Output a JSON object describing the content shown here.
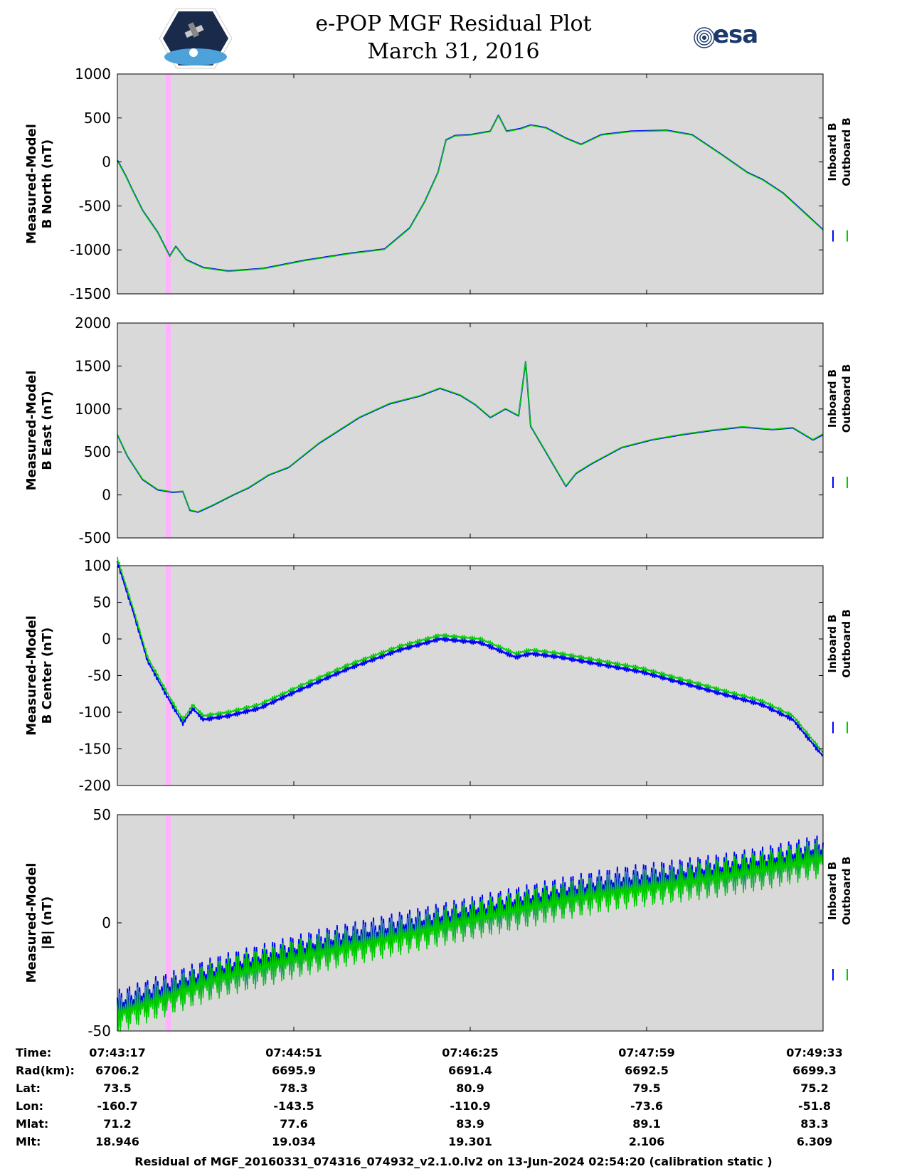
{
  "header": {
    "title": "e-POP MGF Residual Plot",
    "date": "March 31, 2016",
    "esa_logo_text": "esa",
    "mission_logo": "cassiope-mission-logo"
  },
  "chart_data": [
    {
      "type": "line",
      "ylabel": [
        "Measured-Model",
        "B North (nT)"
      ],
      "ylim": [
        -1500,
        1000
      ],
      "yticks": [
        "1000",
        "500",
        "0",
        "-500",
        "-1000",
        "-1500"
      ],
      "ytick_values": [
        1000,
        500,
        0,
        -500,
        -1000,
        -1500
      ],
      "legend": [
        "Inboard B",
        "Outboard B"
      ],
      "series": [
        {
          "name": "Inboard B",
          "color": "#0000ff",
          "values": [
            [
              0,
              20
            ],
            [
              8,
              -150
            ],
            [
              15,
              -320
            ],
            [
              25,
              -550
            ],
            [
              40,
              -800
            ],
            [
              52,
              -1070
            ],
            [
              58,
              -960
            ],
            [
              68,
              -1110
            ],
            [
              85,
              -1200
            ],
            [
              110,
              -1240
            ],
            [
              145,
              -1210
            ],
            [
              185,
              -1120
            ],
            [
              230,
              -1040
            ],
            [
              265,
              -990
            ],
            [
              290,
              -750
            ],
            [
              305,
              -450
            ],
            [
              318,
              -120
            ],
            [
              326,
              250
            ],
            [
              335,
              300
            ],
            [
              350,
              310
            ],
            [
              370,
              350
            ],
            [
              378,
              530
            ],
            [
              386,
              350
            ],
            [
              400,
              380
            ],
            [
              410,
              420
            ],
            [
              425,
              390
            ],
            [
              445,
              270
            ],
            [
              460,
              200
            ],
            [
              480,
              310
            ],
            [
              510,
              350
            ],
            [
              545,
              360
            ],
            [
              570,
              310
            ],
            [
              600,
              80
            ],
            [
              625,
              -120
            ],
            [
              640,
              -200
            ],
            [
              660,
              -350
            ],
            [
              680,
              -560
            ],
            [
              700,
              -770
            ]
          ]
        },
        {
          "name": "Outboard B",
          "color": "#00cc00",
          "values": [
            [
              0,
              15
            ],
            [
              8,
              -155
            ],
            [
              15,
              -325
            ],
            [
              25,
              -555
            ],
            [
              40,
              -805
            ],
            [
              52,
              -1075
            ],
            [
              58,
              -965
            ],
            [
              68,
              -1115
            ],
            [
              85,
              -1205
            ],
            [
              110,
              -1245
            ],
            [
              145,
              -1215
            ],
            [
              185,
              -1125
            ],
            [
              230,
              -1045
            ],
            [
              265,
              -995
            ],
            [
              290,
              -755
            ],
            [
              305,
              -455
            ],
            [
              318,
              -125
            ],
            [
              326,
              245
            ],
            [
              335,
              295
            ],
            [
              350,
              305
            ],
            [
              370,
              345
            ],
            [
              378,
              525
            ],
            [
              386,
              345
            ],
            [
              400,
              375
            ],
            [
              410,
              415
            ],
            [
              425,
              385
            ],
            [
              445,
              265
            ],
            [
              460,
              195
            ],
            [
              480,
              305
            ],
            [
              510,
              345
            ],
            [
              545,
              355
            ],
            [
              570,
              305
            ],
            [
              600,
              75
            ],
            [
              625,
              -125
            ],
            [
              640,
              -205
            ],
            [
              660,
              -355
            ],
            [
              680,
              -565
            ],
            [
              700,
              -775
            ]
          ]
        }
      ]
    },
    {
      "type": "line",
      "ylabel": [
        "Measured-Model",
        "B East (nT)"
      ],
      "ylim": [
        -500,
        2000
      ],
      "yticks": [
        "2000",
        "1500",
        "1000",
        "500",
        "0",
        "-500"
      ],
      "ytick_values": [
        2000,
        1500,
        1000,
        500,
        0,
        -500
      ],
      "legend": [
        "Inboard B",
        "Outboard B"
      ],
      "series": [
        {
          "name": "Inboard B",
          "color": "#0000ff",
          "values": [
            [
              0,
              700
            ],
            [
              10,
              450
            ],
            [
              25,
              180
            ],
            [
              40,
              60
            ],
            [
              55,
              30
            ],
            [
              65,
              40
            ],
            [
              72,
              -180
            ],
            [
              80,
              -200
            ],
            [
              95,
              -120
            ],
            [
              115,
              0
            ],
            [
              130,
              80
            ],
            [
              150,
              230
            ],
            [
              170,
              320
            ],
            [
              200,
              600
            ],
            [
              240,
              900
            ],
            [
              270,
              1060
            ],
            [
              300,
              1150
            ],
            [
              320,
              1240
            ],
            [
              340,
              1160
            ],
            [
              355,
              1050
            ],
            [
              370,
              900
            ],
            [
              385,
              1000
            ],
            [
              398,
              920
            ],
            [
              405,
              1550
            ],
            [
              410,
              800
            ],
            [
              425,
              500
            ],
            [
              445,
              100
            ],
            [
              455,
              250
            ],
            [
              470,
              360
            ],
            [
              500,
              550
            ],
            [
              530,
              640
            ],
            [
              560,
              700
            ],
            [
              590,
              750
            ],
            [
              620,
              790
            ],
            [
              650,
              760
            ],
            [
              670,
              780
            ],
            [
              690,
              640
            ],
            [
              700,
              700
            ]
          ]
        },
        {
          "name": "Outboard B",
          "color": "#00cc00",
          "values": [
            [
              0,
              705
            ],
            [
              10,
              455
            ],
            [
              25,
              185
            ],
            [
              40,
              65
            ],
            [
              55,
              35
            ],
            [
              65,
              45
            ],
            [
              72,
              -175
            ],
            [
              80,
              -195
            ],
            [
              95,
              -115
            ],
            [
              115,
              5
            ],
            [
              130,
              85
            ],
            [
              150,
              235
            ],
            [
              170,
              325
            ],
            [
              200,
              605
            ],
            [
              240,
              905
            ],
            [
              270,
              1065
            ],
            [
              300,
              1155
            ],
            [
              320,
              1245
            ],
            [
              340,
              1165
            ],
            [
              355,
              1055
            ],
            [
              370,
              905
            ],
            [
              385,
              1005
            ],
            [
              398,
              925
            ],
            [
              405,
              1555
            ],
            [
              410,
              805
            ],
            [
              425,
              505
            ],
            [
              445,
              105
            ],
            [
              455,
              255
            ],
            [
              470,
              365
            ],
            [
              500,
              555
            ],
            [
              530,
              645
            ],
            [
              560,
              705
            ],
            [
              590,
              755
            ],
            [
              620,
              795
            ],
            [
              650,
              765
            ],
            [
              670,
              785
            ],
            [
              690,
              645
            ],
            [
              700,
              710
            ]
          ]
        }
      ]
    },
    {
      "type": "line",
      "ylabel": [
        "Measured-Model",
        "B Center (nT)"
      ],
      "ylim": [
        -200,
        100
      ],
      "yticks": [
        "100",
        "50",
        "0",
        "-50",
        "-100",
        "-150",
        "-200"
      ],
      "ytick_values": [
        100,
        50,
        0,
        -50,
        -100,
        -150,
        -200
      ],
      "legend": [
        "Inboard B",
        "Outboard B"
      ],
      "series": [
        {
          "name": "Inboard B",
          "color": "#0000ff",
          "values": [
            [
              0,
              105
            ],
            [
              15,
              40
            ],
            [
              30,
              -30
            ],
            [
              50,
              -80
            ],
            [
              65,
              -115
            ],
            [
              75,
              -95
            ],
            [
              85,
              -110
            ],
            [
              110,
              -105
            ],
            [
              140,
              -95
            ],
            [
              180,
              -70
            ],
            [
              230,
              -40
            ],
            [
              280,
              -15
            ],
            [
              320,
              0
            ],
            [
              360,
              -5
            ],
            [
              395,
              -25
            ],
            [
              410,
              -20
            ],
            [
              440,
              -25
            ],
            [
              480,
              -35
            ],
            [
              520,
              -45
            ],
            [
              560,
              -60
            ],
            [
              600,
              -75
            ],
            [
              640,
              -90
            ],
            [
              670,
              -110
            ],
            [
              700,
              -160
            ]
          ]
        },
        {
          "name": "Outboard B",
          "color": "#00cc00",
          "values": [
            [
              0,
              110
            ],
            [
              15,
              45
            ],
            [
              30,
              -25
            ],
            [
              50,
              -75
            ],
            [
              65,
              -110
            ],
            [
              75,
              -90
            ],
            [
              85,
              -105
            ],
            [
              110,
              -100
            ],
            [
              140,
              -90
            ],
            [
              180,
              -65
            ],
            [
              230,
              -35
            ],
            [
              280,
              -10
            ],
            [
              320,
              5
            ],
            [
              360,
              0
            ],
            [
              395,
              -20
            ],
            [
              410,
              -15
            ],
            [
              440,
              -20
            ],
            [
              480,
              -30
            ],
            [
              520,
              -40
            ],
            [
              560,
              -55
            ],
            [
              600,
              -70
            ],
            [
              640,
              -85
            ],
            [
              670,
              -105
            ],
            [
              700,
              -155
            ]
          ]
        }
      ]
    },
    {
      "type": "line",
      "ylabel": [
        "Measured-Model",
        "|B| (nT)"
      ],
      "ylim": [
        -50,
        50
      ],
      "yticks": [
        "50",
        "0",
        "-50"
      ],
      "ytick_values": [
        50,
        0,
        -50
      ],
      "legend": [
        "Inboard B",
        "Outboard B"
      ],
      "series": [
        {
          "name": "Inboard B",
          "color": "#0000ff",
          "values": [
            [
              0,
              -40
            ],
            [
              50,
              -32
            ],
            [
              100,
              -24
            ],
            [
              150,
              -18
            ],
            [
              200,
              -12
            ],
            [
              250,
              -7
            ],
            [
              300,
              -2
            ],
            [
              350,
              3
            ],
            [
              400,
              8
            ],
            [
              450,
              13
            ],
            [
              500,
              17
            ],
            [
              550,
              20
            ],
            [
              600,
              23
            ],
            [
              650,
              27
            ],
            [
              700,
              32
            ]
          ]
        },
        {
          "name": "Outboard B",
          "color": "#00cc00",
          "values": [
            [
              0,
              -42
            ],
            [
              50,
              -34
            ],
            [
              100,
              -26
            ],
            [
              150,
              -20
            ],
            [
              200,
              -14
            ],
            [
              250,
              -9
            ],
            [
              300,
              -4
            ],
            [
              350,
              1
            ],
            [
              400,
              6
            ],
            [
              450,
              11
            ],
            [
              500,
              15
            ],
            [
              550,
              18
            ],
            [
              600,
              21
            ],
            [
              650,
              25
            ],
            [
              700,
              30
            ]
          ]
        }
      ]
    }
  ],
  "x_axis": {
    "ticks": [
      "07:43:17",
      "07:44:51",
      "07:46:25",
      "07:47:59",
      "07:49:33"
    ],
    "tick_positions": [
      0,
      175,
      350,
      525,
      700
    ],
    "xlim": [
      0,
      700
    ],
    "highlight_band": [
      48,
      53
    ]
  },
  "info_table": {
    "labels": [
      "Time:",
      "Rad(km):",
      "Lat:",
      "Lon:",
      "Mlat:",
      "Mlt:"
    ],
    "rows": [
      [
        "07:43:17",
        "07:44:51",
        "07:46:25",
        "07:47:59",
        "07:49:33"
      ],
      [
        "6706.2",
        "6695.9",
        "6691.4",
        "6692.5",
        "6699.3"
      ],
      [
        "73.5",
        "78.3",
        "80.9",
        "79.5",
        "75.2"
      ],
      [
        "-160.7",
        "-143.5",
        "-110.9",
        "-73.6",
        "-51.8"
      ],
      [
        "71.2",
        "77.6",
        "83.9",
        "89.1",
        "83.3"
      ],
      [
        "18.946",
        "19.034",
        "19.301",
        "2.106",
        "6.309"
      ]
    ]
  },
  "footer": "Residual of MGF_20160331_074316_074932_v2.1.0.lv2 on 13-Jun-2024 02:54:20 (calibration static )",
  "colors": {
    "plot_background": "#d9d9d9",
    "inboard": "#0000ff",
    "outboard": "#00cc00",
    "highlight": "#ffb3ff"
  }
}
